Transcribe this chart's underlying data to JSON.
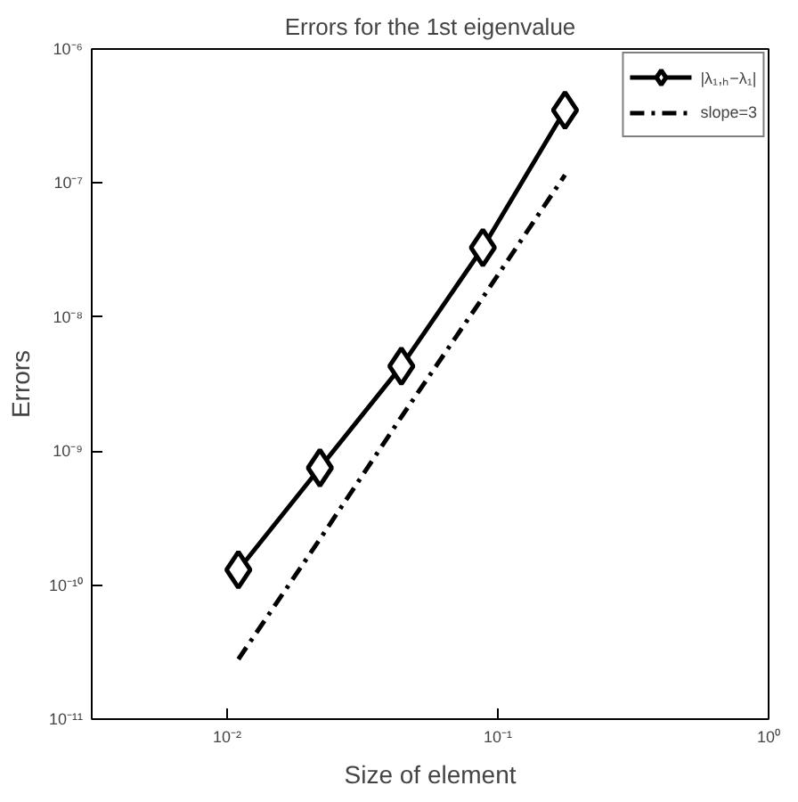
{
  "chart_data": {
    "type": "line",
    "title": "Errors for the 1st eigenvalue",
    "xlabel": "Size of element",
    "ylabel": "Errors",
    "log": "xy",
    "grid": false,
    "legend": "top right",
    "xlim": [
      0.00316,
      1
    ],
    "ylim": [
      1e-11,
      1e-06
    ],
    "xticks": [
      {
        "value": 0.01,
        "label": "10⁻²"
      },
      {
        "value": 0.1,
        "label": "10⁻¹"
      },
      {
        "value": 1,
        "label": "10⁰"
      }
    ],
    "yticks": [
      {
        "value": 1e-11,
        "label": "10⁻¹¹"
      },
      {
        "value": 1e-10,
        "label": "10⁻¹⁰"
      },
      {
        "value": 1e-09,
        "label": "10⁻⁹"
      },
      {
        "value": 1e-08,
        "label": "10⁻⁸"
      },
      {
        "value": 1e-07,
        "label": "10⁻⁷"
      },
      {
        "value": 1e-06,
        "label": "10⁻⁶"
      }
    ],
    "x": [
      0.011,
      0.022,
      0.044,
      0.088,
      0.177
    ],
    "series": [
      {
        "name": "|λ₁,ₕ−λ₁|",
        "color": "#000000",
        "marker": "diamond",
        "line_style": "solid",
        "values": [
          1.3e-10,
          7.5e-10,
          4.3e-09,
          3.3e-08,
          3.5e-07
        ]
      },
      {
        "name": "slope=3",
        "color": "#000000",
        "marker": "none",
        "line_style": "dashdot",
        "values": [
          2.8e-11,
          2.2e-10,
          1.8e-09,
          1.4e-08,
          1.15e-07
        ]
      }
    ]
  }
}
